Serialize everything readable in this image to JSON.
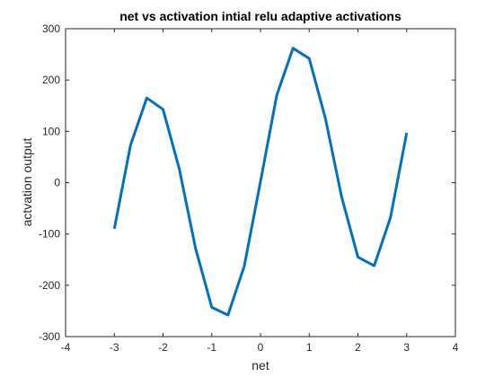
{
  "chart_data": {
    "type": "line",
    "title": "net vs activation intial relu adaptive activations",
    "xlabel": "net",
    "ylabel": "actvation output",
    "xlim": [
      -4,
      4
    ],
    "ylim": [
      -300,
      300
    ],
    "xticks": [
      -4,
      -3,
      -2,
      -1,
      0,
      1,
      2,
      3,
      4
    ],
    "yticks": [
      -300,
      -200,
      -100,
      0,
      100,
      200,
      300
    ],
    "grid": false,
    "legend": "none",
    "series": [
      {
        "color": "#0072BD",
        "x": [
          -3,
          -2.6667,
          -2.3333,
          -2,
          -1.6667,
          -1.3333,
          -1,
          -0.6667,
          -0.3333,
          0,
          0.3333,
          0.6667,
          1,
          1.3333,
          1.6667,
          2,
          2.3333,
          2.6667,
          3
        ],
        "y": [
          -90,
          73,
          165,
          143,
          27,
          -128,
          -243,
          -258,
          -163,
          2,
          170,
          262,
          242,
          125,
          -28,
          -145,
          -162,
          -68,
          97
        ]
      }
    ]
  }
}
